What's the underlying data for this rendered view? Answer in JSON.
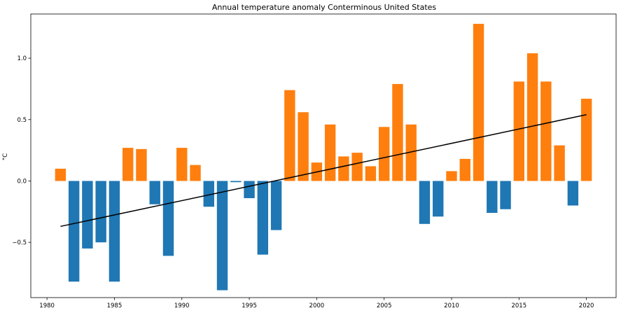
{
  "chart_data": {
    "type": "bar",
    "title": "Annual temperature anomaly Conterminous United States",
    "xlabel": "",
    "ylabel": "°C",
    "xlim": [
      1978.8,
      2022.2
    ],
    "ylim": [
      -0.95,
      1.36
    ],
    "x_ticks": [
      1980,
      1985,
      1990,
      1995,
      2000,
      2005,
      2010,
      2015,
      2020
    ],
    "y_ticks": [
      -0.5,
      0.0,
      0.5,
      1.0
    ],
    "grid": false,
    "legend": "none",
    "colors": {
      "negative": "#1f77b4",
      "positive": "#ff7f0e",
      "trend": "#000000"
    },
    "x": [
      1981,
      1982,
      1983,
      1984,
      1985,
      1986,
      1987,
      1988,
      1989,
      1990,
      1991,
      1992,
      1993,
      1994,
      1995,
      1996,
      1997,
      1998,
      1999,
      2000,
      2001,
      2002,
      2003,
      2004,
      2005,
      2006,
      2007,
      2008,
      2009,
      2010,
      2011,
      2012,
      2013,
      2014,
      2015,
      2016,
      2017,
      2018,
      2019,
      2020
    ],
    "values": [
      0.1,
      -0.82,
      -0.55,
      -0.5,
      -0.82,
      0.27,
      0.26,
      -0.19,
      -0.61,
      0.27,
      0.13,
      -0.21,
      -0.89,
      -0.01,
      -0.14,
      -0.6,
      -0.4,
      0.74,
      0.56,
      0.15,
      0.46,
      0.2,
      0.23,
      0.12,
      0.44,
      0.79,
      0.46,
      -0.35,
      -0.29,
      0.08,
      0.18,
      1.28,
      -0.26,
      -0.23,
      0.81,
      1.04,
      0.81,
      0.29,
      -0.2,
      0.67
    ],
    "trend_line": {
      "x": [
        1981,
        2020
      ],
      "y": [
        -0.37,
        0.54
      ]
    }
  }
}
